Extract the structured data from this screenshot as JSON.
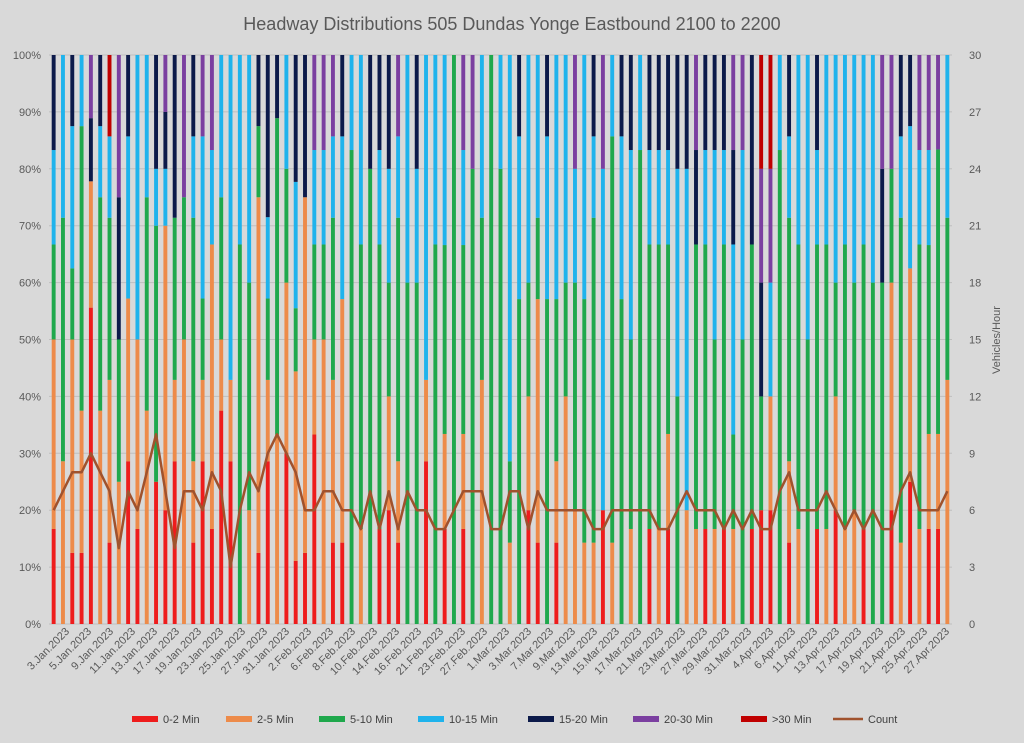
{
  "chart_data": {
    "type": "bar",
    "stacked": true,
    "percent_stacked": true,
    "title": "Headway Distributions 505 Dundas  Yonge Eastbound 2100 to 2200",
    "y_left": {
      "label": "",
      "ticks": [
        "0%",
        "10%",
        "20%",
        "30%",
        "40%",
        "50%",
        "60%",
        "70%",
        "80%",
        "90%",
        "100%"
      ],
      "range": [
        0,
        100
      ]
    },
    "y_right": {
      "label": "Vehicles/Hour",
      "ticks": [
        "0",
        "3",
        "6",
        "9",
        "12",
        "15",
        "18",
        "21",
        "24",
        "27",
        "30"
      ],
      "range": [
        0,
        30
      ]
    },
    "grid": true,
    "legend_position": "bottom",
    "x_tick_labels": [
      "3.Jan.2023",
      "5.Jan.2023",
      "9.Jan.2023",
      "11.Jan.2023",
      "13.Jan.2023",
      "17.Jan.2023",
      "19.Jan.2023",
      "23.Jan.2023",
      "25.Jan.2023",
      "27.Jan.2023",
      "31.Jan.2023",
      "2.Feb.2023",
      "6.Feb.2023",
      "8.Feb.2023",
      "10.Feb.2023",
      "14.Feb.2023",
      "16.Feb.2023",
      "21.Feb.2023",
      "23.Feb.2023",
      "27.Feb.2023",
      "1.Mar.2023",
      "3.Mar.2023",
      "7.Mar.2023",
      "9.Mar.2023",
      "13.Mar.2023",
      "15.Mar.2023",
      "17.Mar.2023",
      "21.Mar.2023",
      "23.Mar.2023",
      "27.Mar.2023",
      "29.Mar.2023",
      "31.Mar.2023",
      "4.Apr.2023",
      "6.Apr.2023",
      "11.Apr.2023",
      "13.Apr.2023",
      "17.Apr.2023",
      "19.Apr.2023",
      "21.Apr.2023",
      "25.Apr.2023",
      "27.Apr.2023"
    ],
    "series": [
      {
        "name": "0-2 Min",
        "color": "#ee1c1c"
      },
      {
        "name": "2-5 Min",
        "color": "#ed8b4a"
      },
      {
        "name": "5-10 Min",
        "color": "#1fa84c"
      },
      {
        "name": "10-15 Min",
        "color": "#1fb3ec"
      },
      {
        "name": "15-20 Min",
        "color": "#0c1a4a"
      },
      {
        "name": "20-30 Min",
        "color": "#7b3fa0"
      },
      {
        "name": ">30 Min",
        "color": "#c00000"
      }
    ],
    "line_series": {
      "name": "Count",
      "color": "#a0522d",
      "axis": "right"
    },
    "bars": [
      [
        16.7,
        33.3,
        16.7,
        16.6,
        16.7,
        0,
        0
      ],
      [
        0,
        28.6,
        42.8,
        28.6,
        0,
        0,
        0
      ],
      [
        12.5,
        37.5,
        12.5,
        25,
        12.5,
        0,
        0
      ],
      [
        12.5,
        25,
        50,
        12.5,
        0,
        0,
        0
      ],
      [
        55.6,
        22.2,
        0,
        0,
        11.1,
        11.1,
        0
      ],
      [
        0,
        37.5,
        37.5,
        12.5,
        12.5,
        0,
        0
      ],
      [
        14.3,
        28.6,
        28.5,
        14.3,
        0,
        0,
        14.3
      ],
      [
        0,
        25,
        25,
        0,
        25,
        25,
        0
      ],
      [
        28.6,
        28.6,
        0,
        28.5,
        14.3,
        0,
        0
      ],
      [
        16.7,
        33.3,
        0,
        50,
        0,
        0,
        0
      ],
      [
        0,
        37.5,
        37.5,
        25,
        0,
        0,
        0
      ],
      [
        25,
        0,
        45,
        10,
        20,
        0,
        0
      ],
      [
        20,
        50,
        0,
        10,
        10,
        10,
        0
      ],
      [
        28.6,
        14.3,
        28.5,
        0,
        28.6,
        0,
        0
      ],
      [
        0,
        50,
        25,
        0,
        0,
        25,
        0
      ],
      [
        14.3,
        14.3,
        42.8,
        14.3,
        14.3,
        0,
        0
      ],
      [
        28.6,
        14.3,
        14.3,
        28.5,
        0,
        14.3,
        0
      ],
      [
        16.7,
        50,
        0,
        16.6,
        0,
        16.7,
        0
      ],
      [
        37.5,
        12.5,
        25,
        25,
        0,
        0,
        0
      ],
      [
        28.6,
        14.3,
        0,
        57.1,
        0,
        0,
        0
      ],
      [
        0,
        0,
        66.7,
        33.3,
        0,
        0,
        0
      ],
      [
        0,
        20,
        40,
        40,
        0,
        0,
        0
      ],
      [
        12.5,
        62.5,
        12.5,
        0,
        12.5,
        0,
        0
      ],
      [
        28.6,
        14.3,
        14.3,
        14.3,
        28.5,
        0,
        0
      ],
      [
        0,
        33.3,
        55.6,
        0,
        11.1,
        0,
        0
      ],
      [
        30,
        30,
        20,
        20,
        0,
        0,
        0
      ],
      [
        11.1,
        33.3,
        11.1,
        22.2,
        22.3,
        0,
        0
      ],
      [
        12.5,
        62.5,
        0,
        0,
        25,
        0,
        0
      ],
      [
        33.3,
        16.7,
        16.7,
        16.6,
        0,
        16.7,
        0
      ],
      [
        0,
        50,
        16.7,
        16.6,
        0,
        16.7,
        0
      ],
      [
        14.3,
        28.6,
        28.5,
        14.3,
        0,
        14.3,
        0
      ],
      [
        14.3,
        42.8,
        0,
        28.6,
        14.3,
        0,
        0
      ],
      [
        0,
        0,
        83.3,
        16.7,
        0,
        0,
        0
      ],
      [
        0,
        16.7,
        50,
        33.3,
        0,
        0,
        0
      ],
      [
        0,
        0,
        80,
        0,
        20,
        0,
        0
      ],
      [
        16.7,
        0,
        50,
        16.6,
        16.7,
        0,
        0
      ],
      [
        20,
        20,
        20,
        20,
        20,
        0,
        0
      ],
      [
        14.3,
        14.3,
        42.8,
        14.3,
        0,
        14.3,
        0
      ],
      [
        0,
        0,
        60,
        40,
        0,
        0,
        0
      ],
      [
        0,
        0,
        60,
        20,
        20,
        0,
        0
      ],
      [
        28.6,
        14.3,
        0,
        57.1,
        0,
        0,
        0
      ],
      [
        0,
        0,
        66.7,
        33.3,
        0,
        0,
        0
      ],
      [
        16.7,
        16.7,
        33.2,
        33.4,
        0,
        0,
        0
      ],
      [
        0,
        0,
        100,
        0,
        0,
        0,
        0
      ],
      [
        16.7,
        16.7,
        33.2,
        16.7,
        0,
        16.7,
        0
      ],
      [
        0,
        0,
        80,
        0,
        0,
        20,
        0
      ],
      [
        0,
        42.9,
        28.5,
        28.6,
        0,
        0,
        0
      ],
      [
        0,
        0,
        100,
        0,
        0,
        0,
        0
      ],
      [
        0,
        0,
        80,
        20,
        0,
        0,
        0
      ],
      [
        0,
        14.3,
        14.3,
        71.4,
        0,
        0,
        0
      ],
      [
        0,
        0,
        57.1,
        28.6,
        14.3,
        0,
        0
      ],
      [
        20,
        20,
        20,
        40,
        0,
        0,
        0
      ],
      [
        14.3,
        42.8,
        14.3,
        28.6,
        0,
        0,
        0
      ],
      [
        0,
        0,
        57.1,
        28.6,
        14.3,
        0,
        0
      ],
      [
        14.3,
        14.3,
        28.5,
        42.9,
        0,
        0,
        0
      ],
      [
        0,
        40,
        20,
        40,
        0,
        0,
        0
      ],
      [
        0,
        20,
        40,
        20,
        0,
        20,
        0
      ],
      [
        0,
        14.3,
        42.8,
        42.9,
        0,
        0,
        0
      ],
      [
        0,
        14.3,
        57.1,
        14.3,
        14.3,
        0,
        0
      ],
      [
        20,
        0,
        0,
        60,
        0,
        20,
        0
      ],
      [
        0,
        14.3,
        71.4,
        14.3,
        0,
        0,
        0
      ],
      [
        0,
        0,
        57.1,
        28.6,
        14.3,
        0,
        0
      ],
      [
        0,
        16.7,
        33.3,
        33.3,
        16.7,
        0,
        0
      ],
      [
        0,
        0,
        83.3,
        16.7,
        0,
        0,
        0
      ],
      [
        16.7,
        0,
        50,
        16.6,
        16.7,
        0,
        0
      ],
      [
        0,
        16.7,
        50,
        16.6,
        16.7,
        0,
        0
      ],
      [
        16.7,
        16.7,
        33.3,
        16.6,
        16.7,
        0,
        0
      ],
      [
        0,
        0,
        40,
        40,
        20,
        0,
        0
      ],
      [
        0,
        20,
        0,
        60,
        20,
        0,
        0
      ],
      [
        0,
        16.7,
        50,
        0,
        16.6,
        16.7,
        0
      ],
      [
        16.7,
        0,
        50,
        16.6,
        16.7,
        0,
        0
      ],
      [
        0,
        16.7,
        33.3,
        33.3,
        16.7,
        0,
        0
      ],
      [
        16.7,
        0,
        50,
        16.6,
        16.7,
        0,
        0
      ],
      [
        0,
        16.7,
        16.6,
        33.4,
        16.6,
        16.7,
        0
      ],
      [
        0,
        0,
        50,
        33.3,
        0,
        16.7,
        0
      ],
      [
        16.7,
        0,
        50,
        0,
        33.3,
        0,
        0
      ],
      [
        20,
        0,
        20,
        0,
        20,
        20,
        20
      ],
      [
        20,
        20,
        0,
        20,
        0,
        20,
        20
      ],
      [
        0,
        0,
        83.3,
        16.7,
        0,
        0,
        0
      ],
      [
        14.3,
        14.3,
        42.8,
        14.3,
        14.3,
        0,
        0
      ],
      [
        0,
        16.7,
        50,
        33.3,
        0,
        0,
        0
      ],
      [
        0,
        0,
        50,
        50,
        0,
        0,
        0
      ],
      [
        16.7,
        0,
        50,
        16.6,
        16.7,
        0,
        0
      ],
      [
        0,
        16.7,
        50,
        33.3,
        0,
        0,
        0
      ],
      [
        20,
        20,
        20,
        40,
        0,
        0,
        0
      ],
      [
        0,
        16.7,
        50,
        33.3,
        0,
        0,
        0
      ],
      [
        0,
        20,
        40,
        40,
        0,
        0,
        0
      ],
      [
        16.7,
        0,
        50,
        33.3,
        0,
        0,
        0
      ],
      [
        0,
        0,
        60,
        40,
        0,
        0,
        0
      ],
      [
        0,
        0,
        60,
        0,
        20,
        20,
        0
      ],
      [
        20,
        40,
        20,
        0,
        0,
        20,
        0
      ],
      [
        0,
        14.3,
        57.1,
        14.3,
        14.3,
        0,
        0
      ],
      [
        25,
        37.5,
        0,
        25,
        12.5,
        0,
        0
      ],
      [
        0,
        16.7,
        50,
        16.6,
        0,
        16.7,
        0
      ],
      [
        16.7,
        16.7,
        33.2,
        16.7,
        0,
        16.7,
        0
      ],
      [
        16.7,
        16.7,
        50,
        0,
        0,
        16.6,
        0
      ],
      [
        0,
        42.9,
        28.5,
        28.6,
        0,
        0,
        0
      ]
    ],
    "count_values": [
      6,
      7,
      8,
      8,
      9,
      8,
      7,
      4,
      7,
      6,
      8,
      10,
      7,
      4,
      7,
      7,
      6,
      8,
      7,
      3,
      6,
      8,
      7,
      9,
      10,
      9,
      8,
      6,
      6,
      7,
      7,
      6,
      6,
      5,
      7,
      5,
      7,
      5,
      7,
      6,
      6,
      5,
      5,
      6,
      7,
      7,
      7,
      5,
      5,
      7,
      7,
      5,
      7,
      6,
      6,
      6,
      6,
      6,
      5,
      5,
      6,
      6,
      6,
      6,
      6,
      5,
      5,
      6,
      7,
      6,
      6,
      6,
      5,
      6,
      5,
      6,
      5,
      5,
      7,
      8,
      6,
      6,
      6,
      7,
      6,
      5,
      6,
      5,
      6,
      5,
      5,
      7,
      8,
      6,
      6,
      6,
      7
    ]
  }
}
